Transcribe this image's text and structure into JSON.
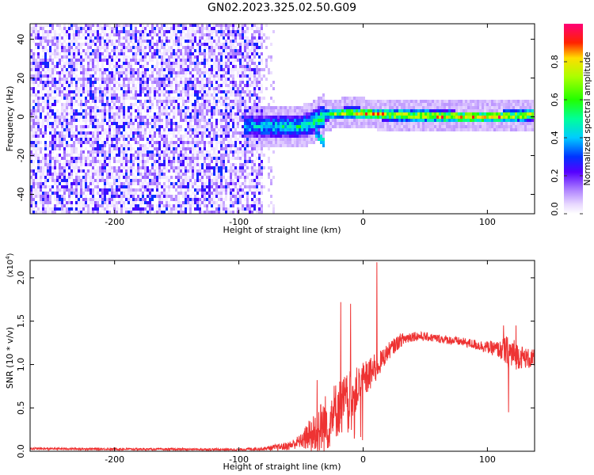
{
  "figure": {
    "title": "GN02.2023.325.02.50.G09"
  },
  "chart_data": [
    {
      "type": "heatmap",
      "xlabel": "Height of straight line (km)",
      "ylabel": "Frequency (Hz)",
      "xlim": [
        -268,
        138
      ],
      "ylim": [
        -50,
        48
      ],
      "xticks": [
        -200,
        -100,
        0,
        100
      ],
      "yticks": [
        -40,
        -20,
        0,
        20,
        40
      ],
      "colorbar": {
        "label": "Normalized spectral amplitude",
        "range": [
          0.0,
          1.0
        ],
        "ticks": [
          0.0,
          0.2,
          0.4,
          0.6,
          0.8
        ],
        "tick_labels": [
          "0.0",
          "0.2",
          "0.4",
          "0.6",
          "0.8"
        ],
        "colormap": "rainbow (white-violet-blue-cyan-green-yellow-red-magenta)"
      },
      "features": {
        "noise_region_x": [
          -268,
          -80
        ],
        "signal_band": {
          "x_start": -95,
          "x_end": 138,
          "center_frequency_hz": [
            [
              -95,
              -5
            ],
            [
              -70,
              -5
            ],
            [
              -50,
              -5
            ],
            [
              -40,
              -3
            ],
            [
              -30,
              1
            ],
            [
              -10,
              2
            ],
            [
              20,
              1
            ],
            [
              50,
              0.5
            ],
            [
              80,
              0
            ],
            [
              110,
              0
            ],
            [
              138,
              1
            ]
          ],
          "amplitude_trend": [
            [
              -95,
              0.45
            ],
            [
              -60,
              0.5
            ],
            [
              -40,
              0.55
            ],
            [
              -20,
              0.75
            ],
            [
              0,
              0.85
            ],
            [
              40,
              0.85
            ],
            [
              80,
              0.95
            ],
            [
              110,
              0.9
            ],
            [
              138,
              0.8
            ]
          ],
          "branch_down": [
            [
              -38,
              -8
            ],
            [
              -30,
              -14
            ]
          ]
        }
      }
    },
    {
      "type": "line",
      "xlabel": "Height of straight line (km)",
      "ylabel": "SNR (10 * v/v)",
      "y_multiplier": "(x10",
      "y_multiplier_exp": "4",
      "y_multiplier_close": ")",
      "xlim": [
        -268,
        138
      ],
      "ylim": [
        0.0,
        2.2
      ],
      "xticks": [
        -200,
        -100,
        0,
        100
      ],
      "yticks": [
        0.0,
        0.5,
        1.0,
        1.5,
        2.0
      ],
      "ytick_labels": [
        "0.0",
        "0.5",
        "1.0",
        "1.5",
        "2.0"
      ],
      "series": [
        {
          "color": "#ee3333",
          "envelope": {
            "x": [
              -268,
              -200,
              -100,
              -80,
              -60,
              -50,
              -40,
              -30,
              -25,
              -20,
              -15,
              -10,
              -5,
              0,
              5,
              10,
              15,
              20,
              30,
              40,
              50,
              60,
              70,
              80,
              90,
              100,
              110,
              115,
              120,
              125,
              130,
              138
            ],
            "mean": [
              0.03,
              0.025,
              0.02,
              0.03,
              0.06,
              0.12,
              0.2,
              0.32,
              0.42,
              0.5,
              0.58,
              0.65,
              0.72,
              0.8,
              0.88,
              0.95,
              1.05,
              1.15,
              1.28,
              1.33,
              1.32,
              1.3,
              1.28,
              1.26,
              1.23,
              1.2,
              1.17,
              1.15,
              1.12,
              1.1,
              1.08,
              1.05
            ],
            "noise": [
              0.012,
              0.012,
              0.012,
              0.02,
              0.05,
              0.08,
              0.25,
              0.35,
              0.35,
              0.33,
              0.3,
              0.28,
              0.25,
              0.22,
              0.2,
              0.18,
              0.12,
              0.1,
              0.08,
              0.06,
              0.05,
              0.05,
              0.05,
              0.05,
              0.06,
              0.07,
              0.1,
              0.18,
              0.2,
              0.15,
              0.12,
              0.12
            ]
          },
          "peaks": [
            {
              "x": 11,
              "y": 2.18
            },
            {
              "x": -18,
              "y": 1.72
            },
            {
              "x": -10,
              "y": 1.7
            },
            {
              "x": -37,
              "y": 0.82
            },
            {
              "x": 117,
              "y": 0.45
            },
            {
              "x": 113,
              "y": 1.45
            },
            {
              "x": 123,
              "y": 1.45
            }
          ]
        }
      ]
    }
  ]
}
